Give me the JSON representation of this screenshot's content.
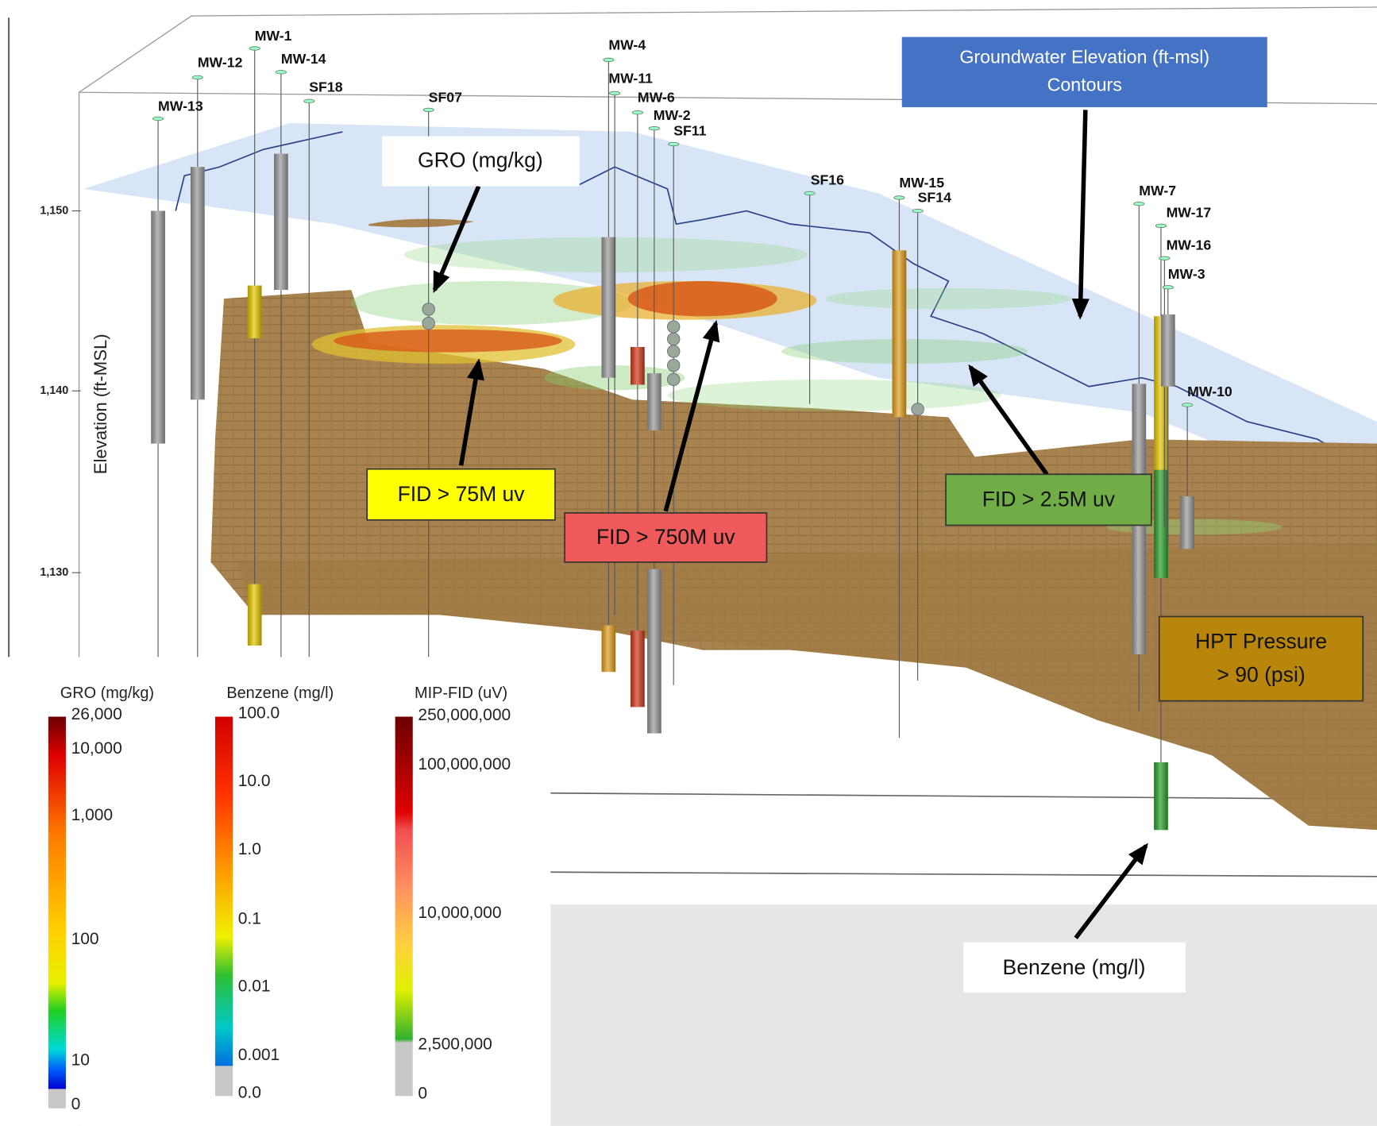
{
  "scene": {
    "axis_label": "Elevation (ft-MSL)",
    "elevation_ticks": [
      "1,150",
      "1,140",
      "1,130"
    ],
    "wells": [
      "MW-1",
      "MW-12",
      "MW-14",
      "MW-13",
      "SF18",
      "SF07",
      "MW-4",
      "MW-11",
      "MW-6",
      "MW-2",
      "SF11",
      "SF16",
      "MW-15",
      "SF14",
      "MW-7",
      "MW-17",
      "MW-16",
      "MW-3",
      "MW-10"
    ]
  },
  "callouts": {
    "gro": "GRO (mg/kg)",
    "groundwater": [
      "Groundwater Elevation (ft-msl)",
      "Contours"
    ],
    "fid_75m": "FID > 75M uv",
    "fid_750m": "FID > 750M uv",
    "fid_2_5m": "FID > 2.5M uv",
    "hpt": [
      "HPT Pressure",
      "> 90 (psi)"
    ],
    "benzene": "Benzene (mg/l)"
  },
  "legends": [
    {
      "title": "GRO (mg/kg)",
      "labels": [
        "26,000",
        "10,000",
        "1,000",
        "100",
        "10",
        "0"
      ]
    },
    {
      "title": "Benzene (mg/l)",
      "labels": [
        "100.0",
        "10.0",
        "1.0",
        "0.1",
        "0.01",
        "0.001",
        "0.0"
      ]
    },
    {
      "title": "MIP-FID (uV)",
      "labels": [
        "250,000,000",
        "100,000,000",
        "10,000,000",
        "2,500,000",
        "0"
      ]
    }
  ]
}
